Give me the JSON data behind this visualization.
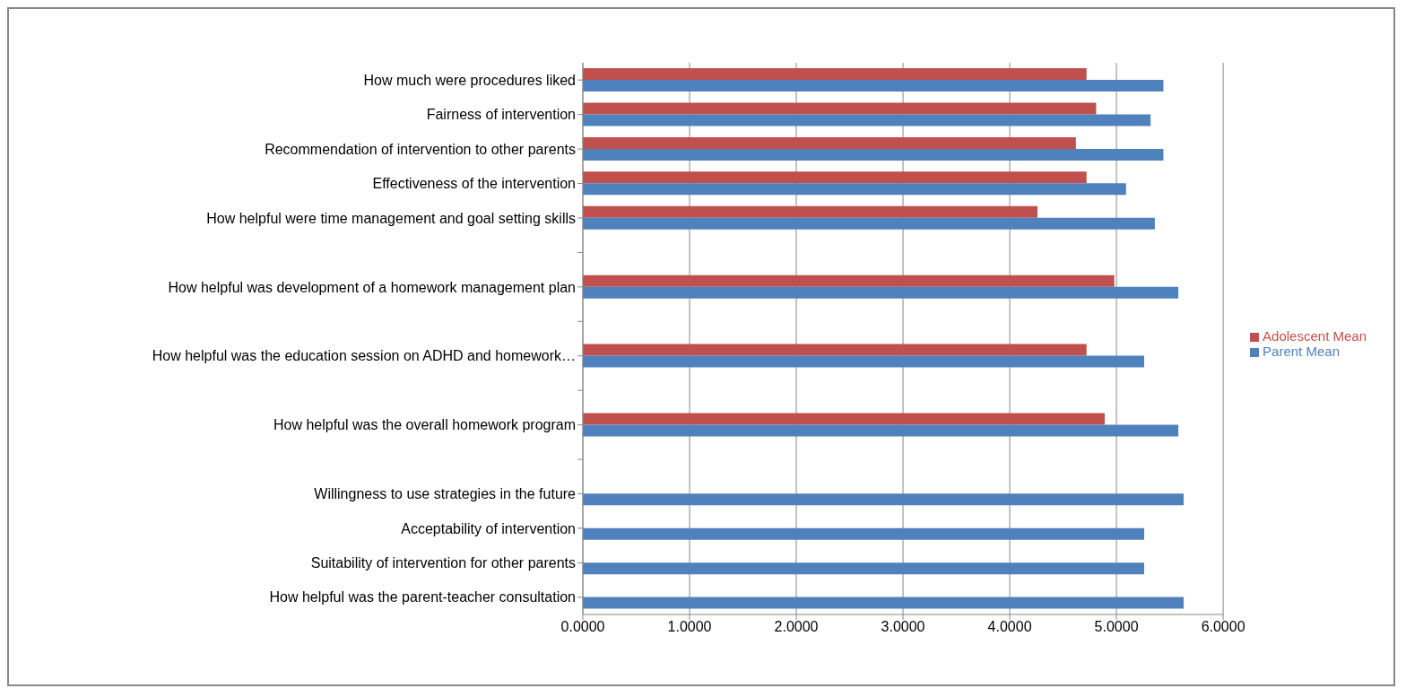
{
  "chart_data": {
    "type": "bar",
    "orientation": "horizontal",
    "categories": [
      "How much were procedures liked",
      "Fairness of intervention",
      "Recommendation of intervention to other parents",
      "Effectiveness of the intervention",
      "How helpful were time management and goal setting skills",
      null,
      "How helpful was development of a homework management plan",
      null,
      "How helpful was the education session on ADHD and homework…",
      null,
      "How helpful was the overall homework program",
      null,
      "Willingness to use strategies in the future",
      "Acceptability of intervention",
      "Suitability of intervention for other parents",
      "How helpful was the parent-teacher consultation"
    ],
    "series": [
      {
        "name": "Adolescent Mean",
        "color": "#c0504d",
        "values": [
          4.72,
          4.81,
          4.62,
          4.72,
          4.26,
          null,
          4.98,
          null,
          4.72,
          null,
          4.89,
          null,
          null,
          null,
          null,
          null
        ]
      },
      {
        "name": "Parent Mean",
        "color": "#4f81bd",
        "values": [
          5.44,
          5.32,
          5.44,
          5.09,
          5.36,
          null,
          5.58,
          null,
          5.26,
          null,
          5.58,
          null,
          5.63,
          5.26,
          5.26,
          5.63
        ]
      }
    ],
    "xlim": [
      0,
      6
    ],
    "xticks": [
      {
        "value": 0,
        "label": "0.0000"
      },
      {
        "value": 1,
        "label": "1.0000"
      },
      {
        "value": 2,
        "label": "2.0000"
      },
      {
        "value": 3,
        "label": "3.0000"
      },
      {
        "value": 4,
        "label": "4.0000"
      },
      {
        "value": 5,
        "label": "5.0000"
      },
      {
        "value": 6,
        "label": "6.0000"
      }
    ],
    "grid": "x",
    "legend": "right"
  }
}
